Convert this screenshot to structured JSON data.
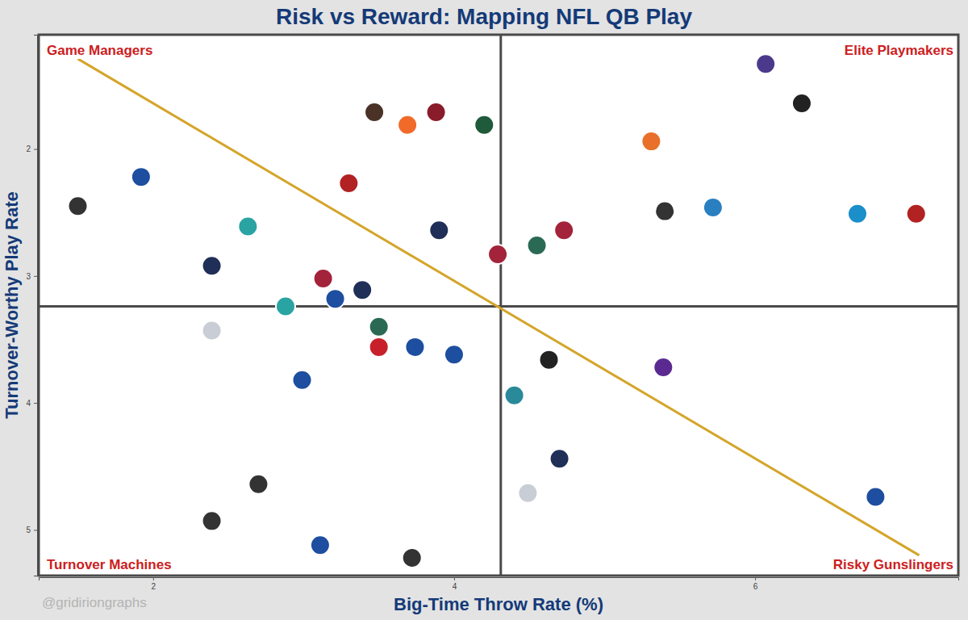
{
  "chart_data": {
    "type": "scatter",
    "title": "Risk vs Reward: Mapping NFL QB Play",
    "x_label": "Big-Time Throw Rate (%)",
    "y_label": "Turnover-Worthy Play Rate",
    "xlim": [
      1.24,
      7.35
    ],
    "ylim": [
      5.36,
      1.1
    ],
    "xticks": [
      2,
      4,
      6
    ],
    "yticks": [
      2,
      3,
      4,
      5
    ],
    "grid": false,
    "marker": "circle",
    "x": [
      6.07,
      6.31,
      5.31,
      5.4,
      5.72,
      6.68,
      7.07,
      3.47,
      3.69,
      3.88,
      4.2,
      3.3,
      1.5,
      1.92,
      2.63,
      2.39,
      3.9,
      4.29,
      4.55,
      4.73,
      3.13,
      2.88,
      3.21,
      3.39,
      2.39,
      3.5,
      3.5,
      3.74,
      4.0,
      2.99,
      4.63,
      4.4,
      5.39,
      4.7,
      4.49,
      6.8,
      2.7,
      2.39,
      3.11,
      3.72
    ],
    "values": [
      1.33,
      1.64,
      1.94,
      2.49,
      2.46,
      2.51,
      2.51,
      1.71,
      1.81,
      1.71,
      1.81,
      2.27,
      2.45,
      2.22,
      2.61,
      2.92,
      2.64,
      2.83,
      2.76,
      2.64,
      3.02,
      3.24,
      3.18,
      3.11,
      3.43,
      3.4,
      3.56,
      3.56,
      3.62,
      3.82,
      3.66,
      3.94,
      3.72,
      4.44,
      4.71,
      4.74,
      4.64,
      4.93,
      5.12,
      5.22
    ],
    "colors": [
      "#4b3a8c",
      "#222222",
      "#e8702a",
      "#333333",
      "#2a7fc1",
      "#1a8fc9",
      "#b22222",
      "#4a3226",
      "#f26a2a",
      "#8a1b2a",
      "#1f5a3a",
      "#b22222",
      "#333333",
      "#1d4ea0",
      "#2aa3a3",
      "#1f2f57",
      "#1f2f57",
      "#a3233a",
      "#2a6a55",
      "#a3233a",
      "#a3233a",
      "#2aa3a3",
      "#1d4ea0",
      "#1f2f57",
      "#c9ced6",
      "#2a6a55",
      "#c8202a",
      "#1d4ea0",
      "#1d4ea0",
      "#1d4ea0",
      "#222222",
      "#2a8a9a",
      "#5a2a90",
      "#1f2f57",
      "#c9ced6",
      "#1d4ea0",
      "#333333",
      "#333333",
      "#1d4ea0",
      "#333333"
    ],
    "reference_lines": {
      "x": 4.31,
      "y": 3.24
    },
    "trend_line": {
      "x": [
        1.5,
        7.09
      ],
      "y": [
        1.29,
        5.2
      ],
      "color": "#d4a52a"
    },
    "annotations": [
      "Game Managers",
      "Elite Playmakers",
      "Turnover Machines",
      "Risky Gunslingers"
    ],
    "source": "@gridiriongraphs"
  }
}
